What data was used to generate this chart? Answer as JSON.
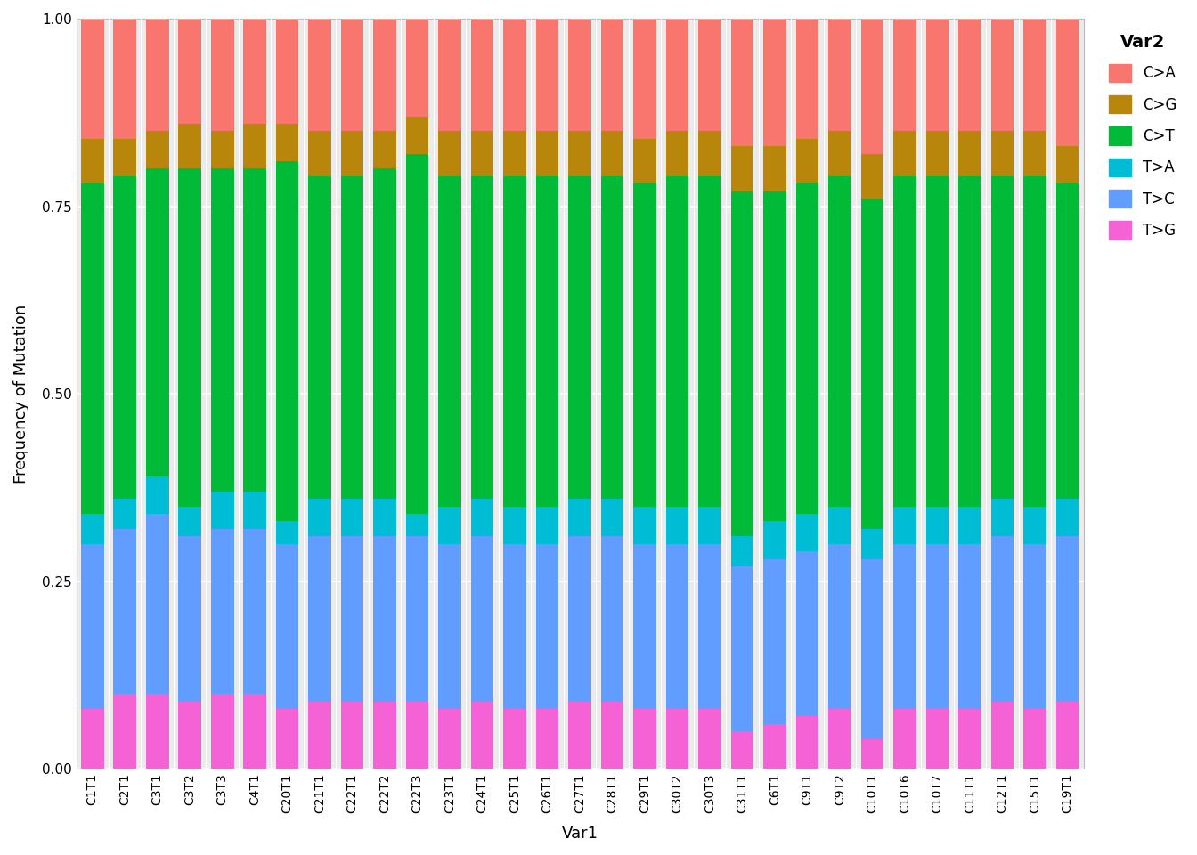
{
  "categories": [
    "C1T1",
    "C2T1",
    "C3T1",
    "C3T2",
    "C3T3",
    "C4T1",
    "C20T1",
    "C21T1",
    "C22T1",
    "C22T2",
    "C22T3",
    "C23T1",
    "C24T1",
    "C25T1",
    "C26T1",
    "C27T1",
    "C28T1",
    "C29T1",
    "C30T2",
    "C30T3",
    "C31T1",
    "C6T1",
    "C9T1",
    "C9T2",
    "C10T1",
    "C10T6",
    "C10T7",
    "C11T1",
    "C12T1",
    "C15T1",
    "C19T1"
  ],
  "series": {
    "T>G": [
      0.08,
      0.1,
      0.1,
      0.09,
      0.1,
      0.1,
      0.08,
      0.09,
      0.09,
      0.09,
      0.09,
      0.08,
      0.09,
      0.08,
      0.08,
      0.09,
      0.09,
      0.08,
      0.08,
      0.08,
      0.05,
      0.06,
      0.07,
      0.08,
      0.04,
      0.08,
      0.08,
      0.08,
      0.09,
      0.08,
      0.09
    ],
    "T>C": [
      0.22,
      0.22,
      0.24,
      0.22,
      0.22,
      0.22,
      0.22,
      0.22,
      0.22,
      0.22,
      0.22,
      0.22,
      0.22,
      0.22,
      0.22,
      0.22,
      0.22,
      0.22,
      0.22,
      0.22,
      0.22,
      0.22,
      0.22,
      0.22,
      0.24,
      0.22,
      0.22,
      0.22,
      0.22,
      0.22,
      0.22
    ],
    "T>A": [
      0.04,
      0.04,
      0.05,
      0.04,
      0.05,
      0.05,
      0.03,
      0.05,
      0.05,
      0.05,
      0.03,
      0.05,
      0.05,
      0.05,
      0.05,
      0.05,
      0.05,
      0.05,
      0.05,
      0.05,
      0.04,
      0.05,
      0.05,
      0.05,
      0.04,
      0.05,
      0.05,
      0.05,
      0.05,
      0.05,
      0.05
    ],
    "C>T": [
      0.44,
      0.43,
      0.41,
      0.45,
      0.43,
      0.43,
      0.48,
      0.43,
      0.43,
      0.44,
      0.48,
      0.44,
      0.43,
      0.44,
      0.44,
      0.43,
      0.43,
      0.43,
      0.44,
      0.44,
      0.46,
      0.44,
      0.44,
      0.44,
      0.44,
      0.44,
      0.44,
      0.44,
      0.43,
      0.44,
      0.42
    ],
    "C>G": [
      0.06,
      0.05,
      0.05,
      0.06,
      0.05,
      0.06,
      0.05,
      0.06,
      0.06,
      0.05,
      0.05,
      0.06,
      0.06,
      0.06,
      0.06,
      0.06,
      0.06,
      0.06,
      0.06,
      0.06,
      0.06,
      0.06,
      0.06,
      0.06,
      0.06,
      0.06,
      0.06,
      0.06,
      0.06,
      0.06,
      0.05
    ],
    "C>A": [
      0.16,
      0.16,
      0.15,
      0.14,
      0.15,
      0.14,
      0.14,
      0.15,
      0.15,
      0.15,
      0.13,
      0.15,
      0.15,
      0.15,
      0.15,
      0.15,
      0.15,
      0.16,
      0.15,
      0.15,
      0.17,
      0.17,
      0.16,
      0.15,
      0.18,
      0.15,
      0.15,
      0.15,
      0.15,
      0.15,
      0.17
    ]
  },
  "colors": {
    "T>G": "#F562D5",
    "T>C": "#619CFF",
    "T>A": "#00BCD4",
    "C>T": "#00BA38",
    "C>G": "#B8860B",
    "C>A": "#F8766D"
  },
  "legend_order": [
    "C>A",
    "C>G",
    "C>T",
    "T>A",
    "T>C",
    "T>G"
  ],
  "stack_order": [
    "T>G",
    "T>C",
    "T>A",
    "C>T",
    "C>G",
    "C>A"
  ],
  "ylabel": "Frequency of Mutation",
  "xlabel": "Var1",
  "legend_title": "Var2",
  "ylim": [
    0,
    1.0
  ],
  "yticks": [
    0.0,
    0.25,
    0.5,
    0.75,
    1.0
  ],
  "background_color": "#FFFFFF",
  "plot_background": "#EBEBEB",
  "grid_color": "#FFFFFF",
  "bar_width": 0.7
}
